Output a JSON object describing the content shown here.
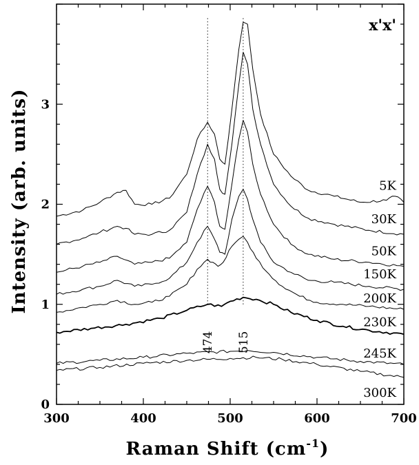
{
  "chart_data": {
    "type": "line",
    "title": "",
    "panel_label": "x'x'",
    "xlabel": "Raman Shift (cm",
    "xlabel_sup": "-1",
    "xlabel_suffix": ")",
    "ylabel": "Intensity (arb. units)",
    "xlim": [
      300,
      700
    ],
    "ylim": [
      0,
      4.0
    ],
    "x_ticks": [
      300,
      400,
      500,
      600,
      700
    ],
    "x_tick_labels": [
      "300",
      "400",
      "500",
      "600",
      "700"
    ],
    "y_ticks": [
      0,
      1,
      2,
      3
    ],
    "y_tick_labels": [
      "0",
      "1",
      "2",
      "3"
    ],
    "grid": false,
    "legend": "none",
    "annotations": [
      {
        "x": 474,
        "label": "474"
      },
      {
        "x": 515,
        "label": "515"
      }
    ],
    "series": [
      {
        "name": "5K",
        "points": [
          [
            300,
            1.88
          ],
          [
            330,
            1.94
          ],
          [
            350,
            2.02
          ],
          [
            370,
            2.12
          ],
          [
            380,
            2.14
          ],
          [
            390,
            2.0
          ],
          [
            410,
            2.0
          ],
          [
            430,
            2.06
          ],
          [
            450,
            2.3
          ],
          [
            462,
            2.65
          ],
          [
            474,
            2.82
          ],
          [
            482,
            2.7
          ],
          [
            488,
            2.45
          ],
          [
            494,
            2.4
          ],
          [
            502,
            2.95
          ],
          [
            510,
            3.55
          ],
          [
            515,
            3.82
          ],
          [
            520,
            3.8
          ],
          [
            526,
            3.35
          ],
          [
            535,
            2.9
          ],
          [
            550,
            2.5
          ],
          [
            570,
            2.28
          ],
          [
            590,
            2.14
          ],
          [
            620,
            2.08
          ],
          [
            650,
            2.02
          ],
          [
            680,
            2.04
          ],
          [
            690,
            2.08
          ],
          [
            700,
            2.02
          ]
        ]
      },
      {
        "name": "30K",
        "points": [
          [
            300,
            1.6
          ],
          [
            330,
            1.66
          ],
          [
            350,
            1.72
          ],
          [
            370,
            1.78
          ],
          [
            380,
            1.76
          ],
          [
            390,
            1.7
          ],
          [
            410,
            1.7
          ],
          [
            430,
            1.74
          ],
          [
            450,
            1.92
          ],
          [
            462,
            2.3
          ],
          [
            474,
            2.6
          ],
          [
            482,
            2.45
          ],
          [
            488,
            2.15
          ],
          [
            494,
            2.1
          ],
          [
            502,
            2.6
          ],
          [
            510,
            3.2
          ],
          [
            515,
            3.52
          ],
          [
            520,
            3.4
          ],
          [
            526,
            2.95
          ],
          [
            535,
            2.6
          ],
          [
            550,
            2.2
          ],
          [
            570,
            1.98
          ],
          [
            590,
            1.86
          ],
          [
            620,
            1.8
          ],
          [
            660,
            1.74
          ],
          [
            700,
            1.7
          ]
        ]
      },
      {
        "name": "50K",
        "points": [
          [
            300,
            1.32
          ],
          [
            330,
            1.38
          ],
          [
            350,
            1.42
          ],
          [
            370,
            1.48
          ],
          [
            390,
            1.4
          ],
          [
            410,
            1.42
          ],
          [
            430,
            1.46
          ],
          [
            450,
            1.62
          ],
          [
            462,
            1.95
          ],
          [
            474,
            2.18
          ],
          [
            482,
            2.02
          ],
          [
            488,
            1.78
          ],
          [
            494,
            1.75
          ],
          [
            502,
            2.2
          ],
          [
            510,
            2.65
          ],
          [
            515,
            2.84
          ],
          [
            520,
            2.72
          ],
          [
            526,
            2.4
          ],
          [
            535,
            2.1
          ],
          [
            550,
            1.8
          ],
          [
            570,
            1.6
          ],
          [
            590,
            1.5
          ],
          [
            620,
            1.45
          ],
          [
            660,
            1.42
          ],
          [
            700,
            1.38
          ]
        ]
      },
      {
        "name": "150K",
        "points": [
          [
            300,
            1.1
          ],
          [
            330,
            1.15
          ],
          [
            350,
            1.18
          ],
          [
            370,
            1.24
          ],
          [
            390,
            1.18
          ],
          [
            410,
            1.2
          ],
          [
            430,
            1.26
          ],
          [
            450,
            1.42
          ],
          [
            462,
            1.62
          ],
          [
            474,
            1.78
          ],
          [
            482,
            1.65
          ],
          [
            488,
            1.52
          ],
          [
            494,
            1.5
          ],
          [
            502,
            1.85
          ],
          [
            510,
            2.08
          ],
          [
            515,
            2.15
          ],
          [
            520,
            2.05
          ],
          [
            526,
            1.85
          ],
          [
            535,
            1.62
          ],
          [
            550,
            1.42
          ],
          [
            570,
            1.32
          ],
          [
            590,
            1.24
          ],
          [
            620,
            1.22
          ],
          [
            660,
            1.18
          ],
          [
            700,
            1.15
          ]
        ]
      },
      {
        "name": "200K",
        "points": [
          [
            300,
            0.92
          ],
          [
            330,
            0.97
          ],
          [
            350,
            1.0
          ],
          [
            370,
            1.04
          ],
          [
            390,
            1.0
          ],
          [
            410,
            1.02
          ],
          [
            430,
            1.08
          ],
          [
            450,
            1.2
          ],
          [
            462,
            1.35
          ],
          [
            474,
            1.45
          ],
          [
            480,
            1.42
          ],
          [
            486,
            1.38
          ],
          [
            492,
            1.42
          ],
          [
            502,
            1.58
          ],
          [
            510,
            1.65
          ],
          [
            515,
            1.68
          ],
          [
            520,
            1.62
          ],
          [
            530,
            1.46
          ],
          [
            545,
            1.3
          ],
          [
            560,
            1.18
          ],
          [
            580,
            1.08
          ],
          [
            600,
            1.02
          ],
          [
            630,
            1.0
          ],
          [
            660,
            0.98
          ],
          [
            700,
            0.95
          ]
        ]
      },
      {
        "name": "230K",
        "points": [
          [
            300,
            0.72
          ],
          [
            340,
            0.76
          ],
          [
            380,
            0.8
          ],
          [
            420,
            0.86
          ],
          [
            450,
            0.94
          ],
          [
            474,
            1.0
          ],
          [
            490,
            0.98
          ],
          [
            500,
            1.03
          ],
          [
            515,
            1.07
          ],
          [
            530,
            1.05
          ],
          [
            550,
            1.0
          ],
          [
            570,
            0.92
          ],
          [
            600,
            0.84
          ],
          [
            630,
            0.78
          ],
          [
            660,
            0.74
          ],
          [
            700,
            0.7
          ]
        ]
      },
      {
        "name": "245K",
        "points": [
          [
            300,
            0.41
          ],
          [
            350,
            0.44
          ],
          [
            400,
            0.47
          ],
          [
            450,
            0.51
          ],
          [
            500,
            0.53
          ],
          [
            520,
            0.54
          ],
          [
            550,
            0.52
          ],
          [
            600,
            0.47
          ],
          [
            650,
            0.43
          ],
          [
            700,
            0.4
          ]
        ]
      },
      {
        "name": "300K",
        "points": [
          [
            300,
            0.34
          ],
          [
            350,
            0.37
          ],
          [
            400,
            0.41
          ],
          [
            450,
            0.44
          ],
          [
            500,
            0.46
          ],
          [
            530,
            0.47
          ],
          [
            560,
            0.45
          ],
          [
            600,
            0.4
          ],
          [
            650,
            0.33
          ],
          [
            700,
            0.27
          ]
        ]
      }
    ]
  }
}
